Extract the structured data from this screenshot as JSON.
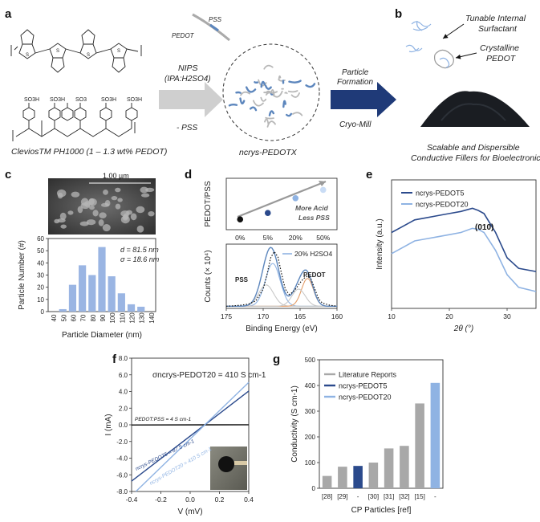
{
  "panels": {
    "a": {
      "letter": "a",
      "so3h_label": "SO3H",
      "so3_minus_label": "SO3",
      "clevios_label": "CleviosTM PH1000 (1 – 1.3 wt% PEDOT)",
      "nips_label": "NIPS",
      "nips_solvent": "(IPA:H2SO4)",
      "minus_pss": "- PSS",
      "pss_tag": "PSS",
      "pedot_tag": "PEDOT",
      "ncrys_label": "ncrys-PEDOTX",
      "particle_formation": "Particle Formation",
      "cryo_mill": "Cryo-Mill"
    },
    "b": {
      "letter": "b",
      "tunable_1": "Tunable Internal",
      "tunable_2": "Surfactant",
      "crystalline_1": "Crystalline",
      "crystalline_2": "PEDOT",
      "caption_1": "Scalable and Dispersible",
      "caption_2": "Conductive Fillers for Bioelectronics"
    },
    "c": {
      "letter": "c",
      "scale_bar": "1.00 µm",
      "d_label": "d = 81.5 nm",
      "sigma_label": "σ = 18.6 nm"
    },
    "d": {
      "letter": "d",
      "more_acid": "More Acid",
      "less_pss": "Less PSS",
      "legend": "20% H2SO4",
      "pss_peak": "PSS",
      "pedot_peak": "PEDOT"
    },
    "e": {
      "letter": "e",
      "peak_label": "(010)"
    },
    "f": {
      "letter": "f",
      "title": "σncrys-PEDOT20 = 410 S cm-1",
      "line_pss": "PEDOT:PSS = 4 S cm-1",
      "line_p5": "ncrys-PEDOT5 = 87 S cm-1",
      "line_p20": "ncrys-PEDOT20 = 410 S cm-1"
    },
    "g": {
      "letter": "g"
    }
  },
  "colors": {
    "dark_blue": "#2b4a8c",
    "light_blue": "#8fb3e3",
    "gray_bar": "#a8a8a8",
    "hist_bar": "#9ab5e3",
    "navy_arrow": "#1f3a78",
    "gray_arrow": "#cfcfcf",
    "black": "#111111"
  },
  "chart_data": [
    {
      "id": "c",
      "type": "bar",
      "categories": [
        "40",
        "50",
        "60",
        "70",
        "80",
        "90",
        "100",
        "110",
        "120",
        "130",
        "140"
      ],
      "values": [
        0,
        2,
        22,
        38,
        30,
        53,
        29,
        15,
        6,
        4,
        0
      ],
      "xlabel": "Particle Diameter (nm)",
      "ylabel": "Particle Number (#)",
      "ylim": [
        0,
        60
      ],
      "yticks": [
        0,
        10,
        20,
        30,
        40,
        50,
        60
      ]
    },
    {
      "id": "d_top",
      "type": "scatter",
      "categories": [
        "0%",
        "5%",
        "20%",
        "50%"
      ],
      "values": [
        0.36,
        0.46,
        0.69,
        0.82
      ],
      "point_colors": [
        "#111111",
        "#2b4a8c",
        "#8fb3e3",
        "#c9dcf5"
      ],
      "ylabel": "PEDOT/PSS",
      "ylim": [
        0.2,
        1.0
      ]
    },
    {
      "id": "d_bottom",
      "type": "line",
      "x": [
        175,
        174,
        173,
        172,
        171,
        170,
        169.5,
        169,
        168.5,
        168,
        167.5,
        167,
        166.5,
        166,
        165.5,
        165,
        164.5,
        164,
        163.5,
        163,
        162.5,
        162,
        161,
        160
      ],
      "series": [
        {
          "name": "",
          "y": [
            0.1,
            0.12,
            0.15,
            0.2,
            0.35,
            0.9,
            1.55,
            2.35,
            2.65,
            2.4,
            1.6,
            0.9,
            0.65,
            0.75,
            0.95,
            1.2,
            1.4,
            1.5,
            1.35,
            0.9,
            0.45,
            0.25,
            0.15,
            0.1
          ]
        }
      ],
      "xlabel": "Binding Energy (eV)",
      "ylabel": "Counts (× 10⁴)",
      "xticks": [
        175,
        170,
        165,
        160
      ],
      "ylim": [
        0,
        3.0
      ]
    },
    {
      "id": "e",
      "type": "line",
      "x": [
        10,
        12,
        14,
        16,
        18,
        20,
        22,
        24,
        25,
        26,
        28,
        30,
        32,
        35
      ],
      "series": [
        {
          "name": "ncrys-PEDOT5",
          "y": [
            0.72,
            0.78,
            0.84,
            0.86,
            0.88,
            0.9,
            0.92,
            0.95,
            0.93,
            0.9,
            0.72,
            0.48,
            0.38,
            0.35
          ]
        },
        {
          "name": "ncrys-PEDOT20",
          "y": [
            0.52,
            0.58,
            0.64,
            0.66,
            0.68,
            0.7,
            0.72,
            0.76,
            0.75,
            0.72,
            0.55,
            0.32,
            0.2,
            0.16
          ]
        }
      ],
      "xlabel": "2θ (°)",
      "ylabel": "Intensity (a.u.)",
      "xticks": [
        10,
        20,
        30
      ],
      "xlim": [
        10,
        35
      ]
    },
    {
      "id": "f",
      "type": "line",
      "x": [
        -0.4,
        0.4
      ],
      "series": [
        {
          "name": "PEDOT:PSS",
          "slope": 0.03
        },
        {
          "name": "ncrys-PEDOT5",
          "slope": 13.5
        },
        {
          "name": "ncrys-PEDOT20",
          "slope": 17.0
        }
      ],
      "x_intercept": 0.1,
      "xlabel": "V (mV)",
      "ylabel": "I (mA)",
      "xlim": [
        -0.4,
        0.4
      ],
      "ylim": [
        -8.0,
        8.0
      ],
      "xticks": [
        -0.4,
        -0.2,
        0.0,
        0.2,
        0.4
      ],
      "yticks": [
        -8.0,
        -6.0,
        -4.0,
        -2.0,
        0.0,
        2.0,
        4.0,
        6.0,
        8.0
      ]
    },
    {
      "id": "g",
      "type": "bar",
      "categories": [
        "[28]",
        "[29]",
        "-",
        "[30]",
        "[31]",
        "[32]",
        "[15]",
        "-"
      ],
      "values": [
        48,
        84,
        87,
        100,
        155,
        165,
        330,
        410
      ],
      "bar_groups": [
        "Literature Reports",
        "Literature Reports",
        "ncrys-PEDOT5",
        "Literature Reports",
        "Literature Reports",
        "Literature Reports",
        "Literature Reports",
        "ncrys-PEDOT20"
      ],
      "legend": [
        "Literature Reports",
        "ncrys-PEDOT5",
        "ncrys-PEDOT20"
      ],
      "xlabel": "CP Particles [ref]",
      "ylabel": "Conductivity (S cm-1)",
      "ylim": [
        0,
        500
      ],
      "yticks": [
        0,
        100,
        200,
        300,
        400,
        500
      ]
    }
  ]
}
